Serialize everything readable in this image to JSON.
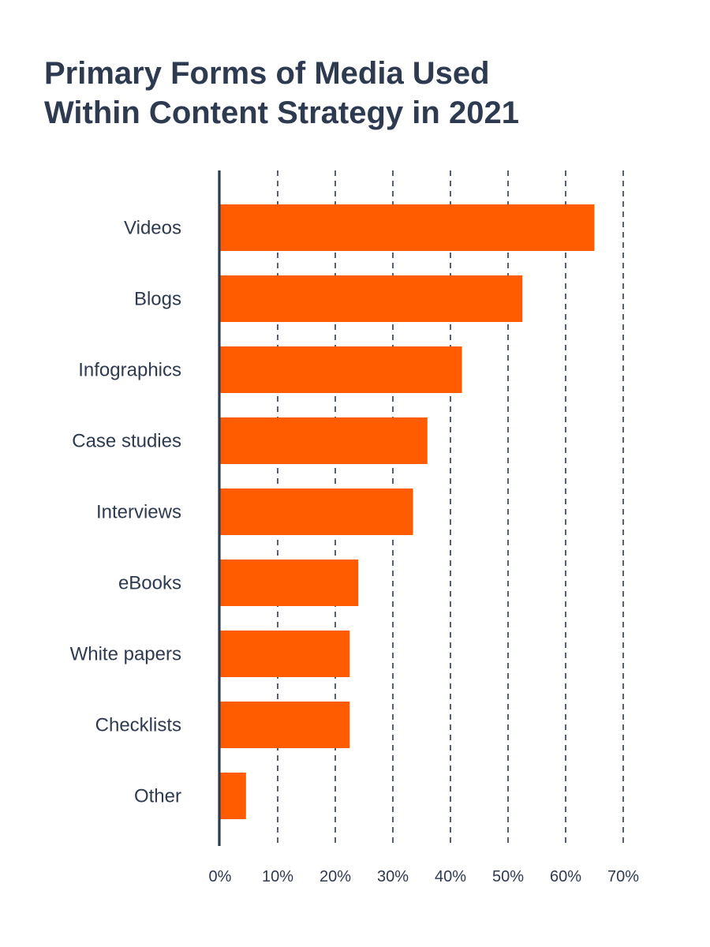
{
  "title": {
    "line1": "Primary Forms of Media Used",
    "line2": "Within Content Strategy in 2021"
  },
  "colors": {
    "bar": "#ff5c00",
    "axis": "#2d3a50",
    "grid": "#2d3a50",
    "text": "#2d3a4f"
  },
  "chart_data": {
    "type": "bar",
    "orientation": "horizontal",
    "title": "Primary Forms of Media Used Within Content Strategy in 2021",
    "xlabel": "",
    "ylabel": "",
    "categories": [
      "Videos",
      "Blogs",
      "Infographics",
      "Case studies",
      "Interviews",
      "eBooks",
      "White papers",
      "Checklists",
      "Other"
    ],
    "values": [
      65,
      52.5,
      42,
      36,
      33.5,
      24,
      22.5,
      22.5,
      4.5
    ],
    "value_unit": "%",
    "xlim": [
      0,
      70
    ],
    "x_ticks": [
      "0%",
      "10%",
      "20%",
      "30%",
      "40%",
      "50%",
      "60%",
      "70%"
    ],
    "grid": "vertical dashed",
    "legend": "none"
  }
}
